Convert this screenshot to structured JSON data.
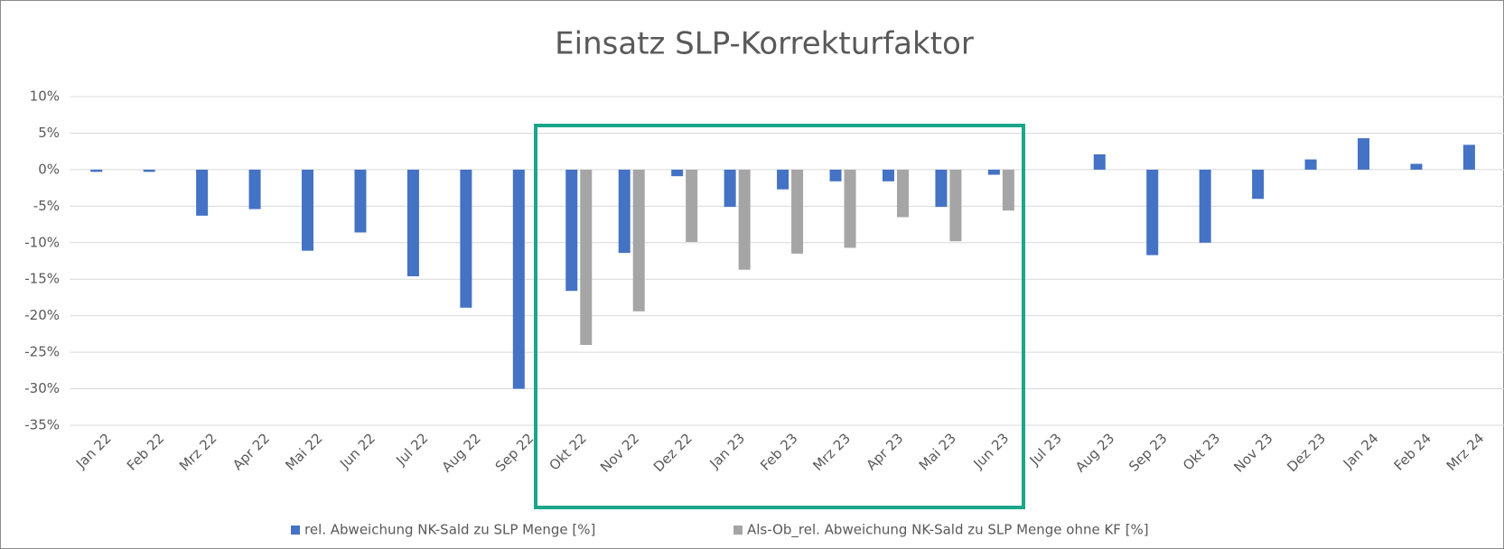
{
  "chart_data": {
    "type": "bar",
    "title": "Einsatz SLP-Korrekturfaktor",
    "categories": [
      "Jan 22",
      "Feb 22",
      "Mrz 22",
      "Apr 22",
      "Mai 22",
      "Jun 22",
      "Jul 22",
      "Aug 22",
      "Sep 22",
      "Okt 22",
      "Nov 22",
      "Dez 22",
      "Jan 23",
      "Feb 23",
      "Mrz 23",
      "Apr 23",
      "Mai 23",
      "Jun 23",
      "Jul 23",
      "Aug 23",
      "Sep 23",
      "Okt 23",
      "Nov 23",
      "Dez 23",
      "Jan 24",
      "Feb 24",
      "Mrz 24"
    ],
    "series": [
      {
        "name": "rel. Abweichung  NK-Sald zu SLP Menge [%]",
        "color": "#4472c4",
        "values": [
          -0.3,
          -0.3,
          -6.3,
          -5.4,
          -11.1,
          -8.6,
          -14.6,
          -18.9,
          -30,
          -16.6,
          -11.4,
          -0.9,
          -5.1,
          -2.7,
          -1.6,
          -1.6,
          -5.1,
          -0.7,
          null,
          2.1,
          -11.7,
          -10,
          -4,
          1.4,
          4.3,
          0.8,
          3.4
        ]
      },
      {
        "name": "Als-Ob_rel. Abweichung  NK-Sald zu SLP Menge ohne KF [%]",
        "color": "#a5a5a5",
        "values": [
          null,
          null,
          null,
          null,
          null,
          null,
          null,
          null,
          null,
          -24,
          -19.4,
          -9.9,
          -13.7,
          -11.5,
          -10.7,
          -6.5,
          -9.8,
          -5.6,
          null,
          null,
          null,
          null,
          null,
          null,
          null,
          null,
          null
        ]
      }
    ],
    "ylim": [
      -35,
      10
    ],
    "yticks": [
      {
        "value": 10,
        "label": "10%"
      },
      {
        "value": 5,
        "label": "5%"
      },
      {
        "value": 0,
        "label": "0%"
      },
      {
        "value": -5,
        "label": "-5%"
      },
      {
        "value": -10,
        "label": "-10%"
      },
      {
        "value": -15,
        "label": "-15%"
      },
      {
        "value": -20,
        "label": "-20%"
      },
      {
        "value": -25,
        "label": "-25%"
      },
      {
        "value": -30,
        "label": "-30%"
      },
      {
        "value": -35,
        "label": "-35%"
      }
    ],
    "grid": true,
    "legend": "bottom"
  }
}
